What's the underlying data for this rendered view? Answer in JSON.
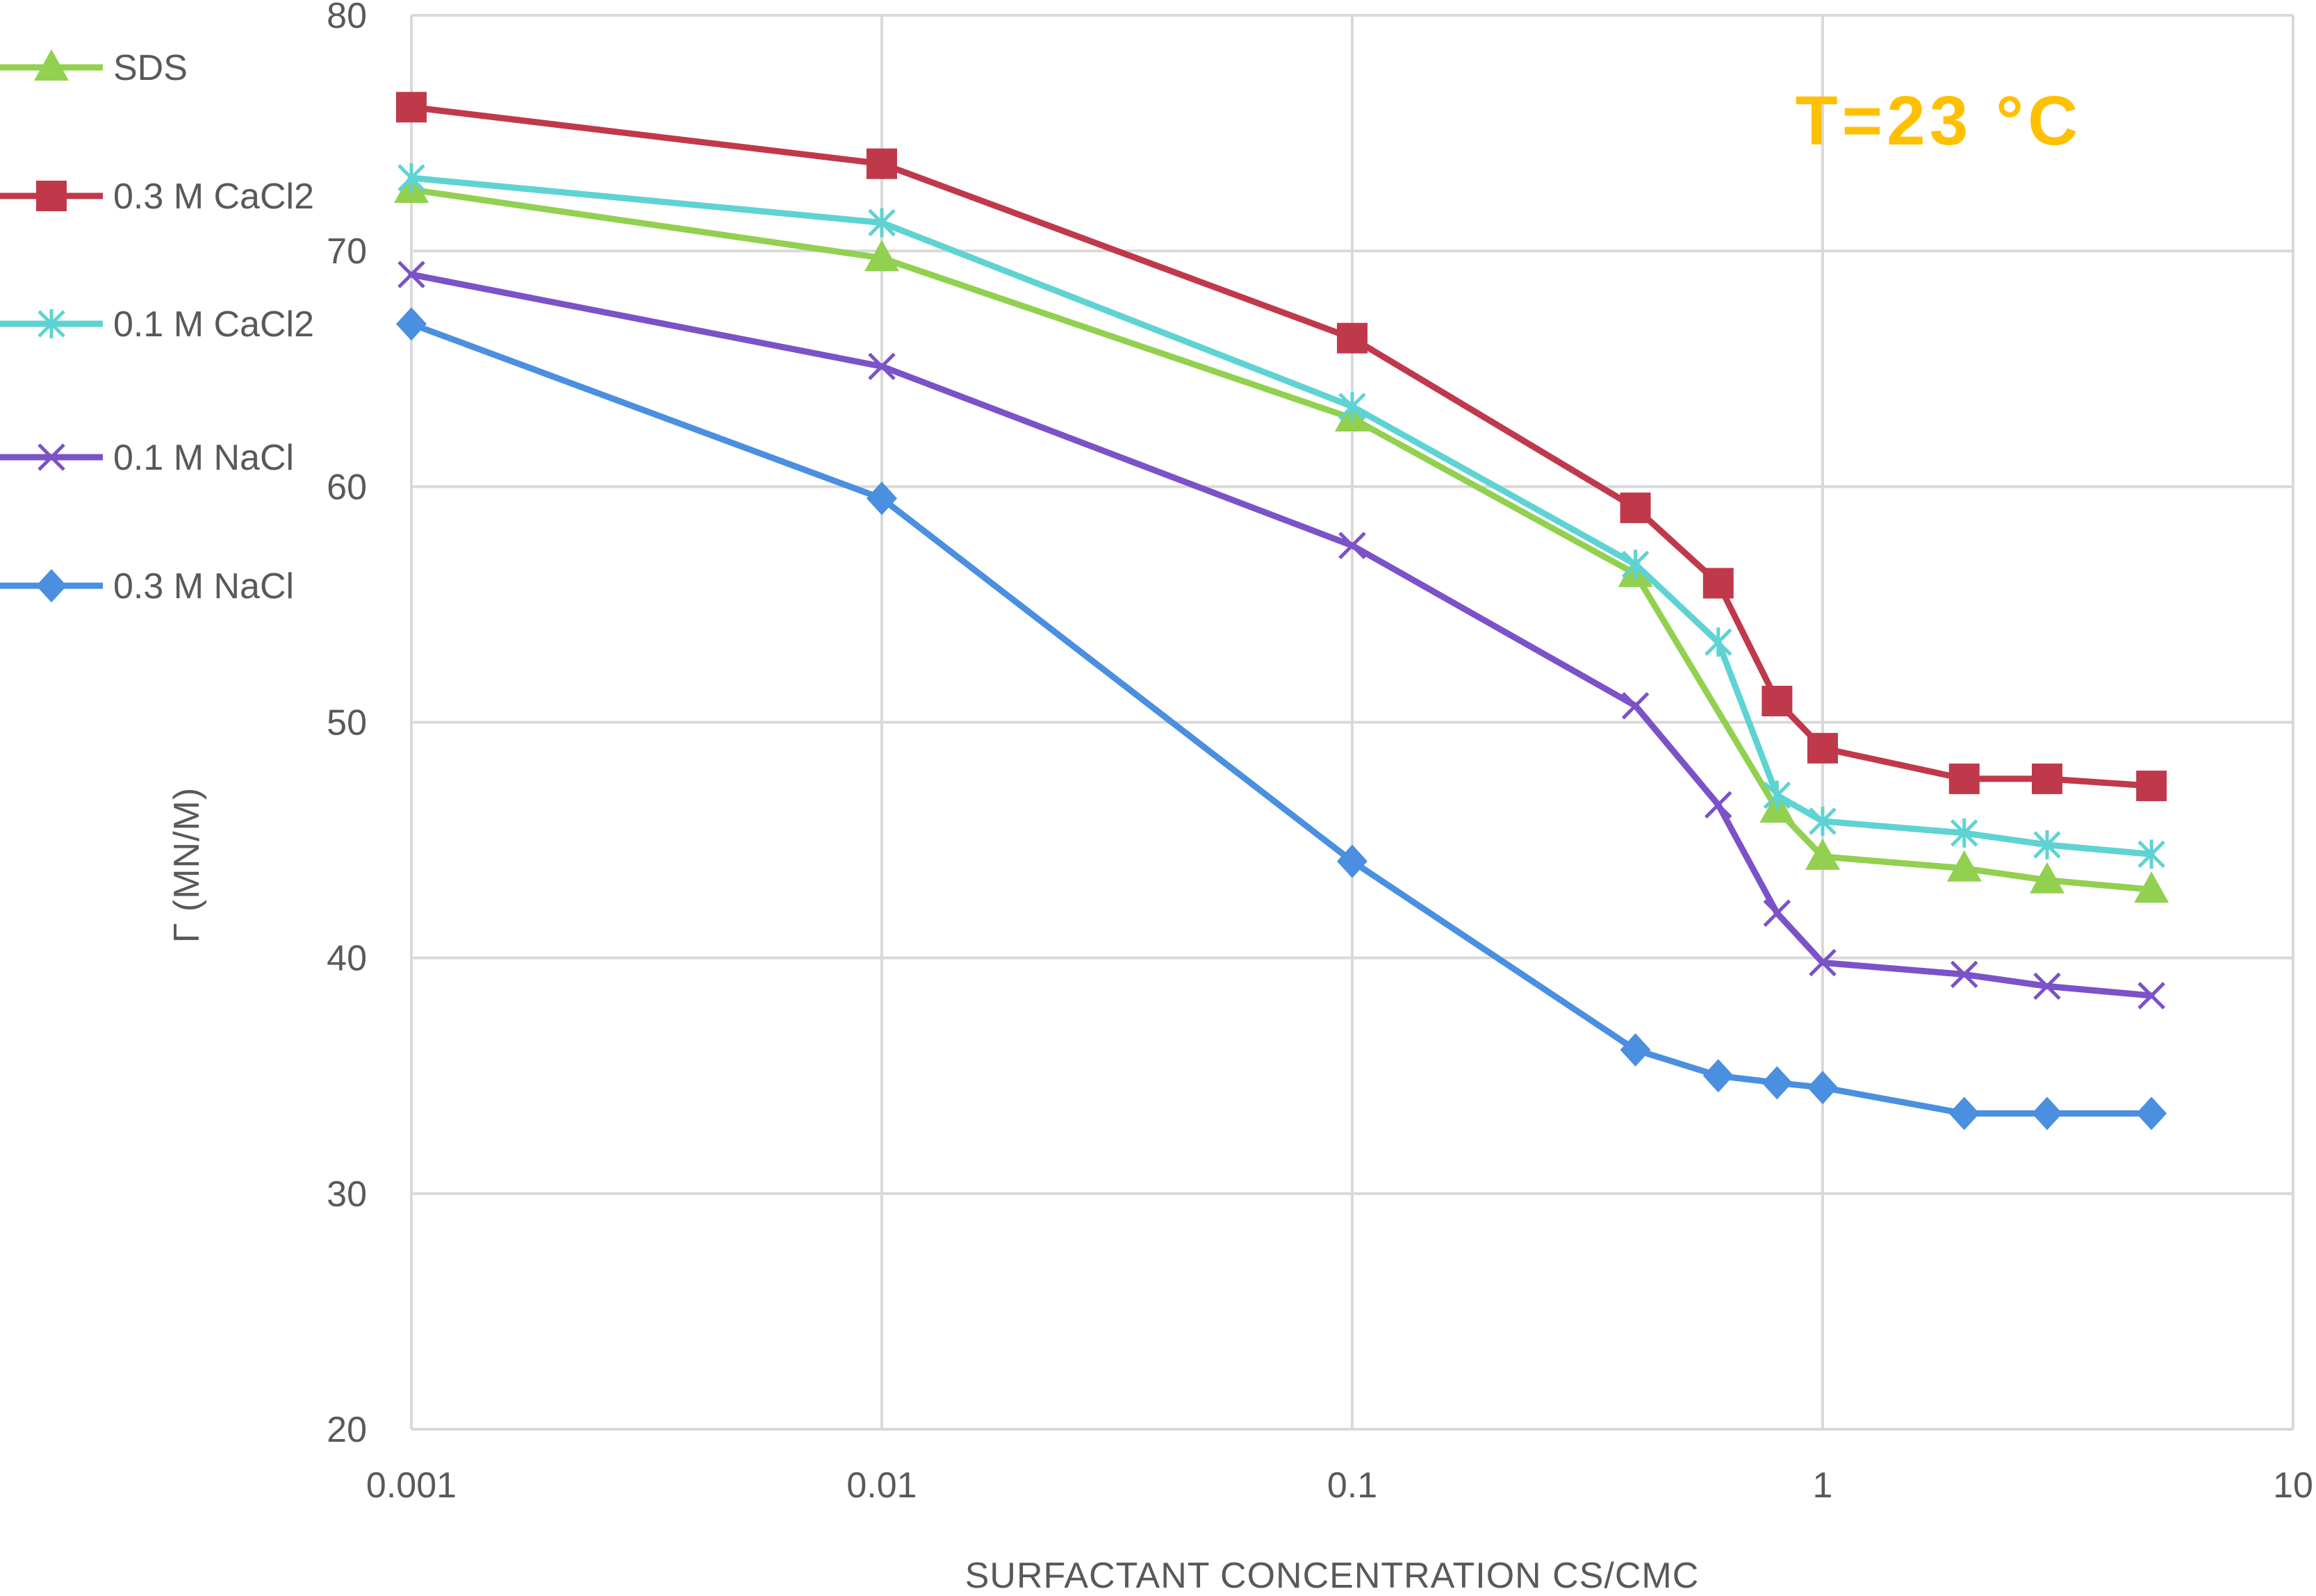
{
  "chart_data": {
    "type": "line",
    "xscale": "log",
    "xlabel": "SURFACTANT CONCENTRATION CS/CMC",
    "ylabel": "Γ (MN/M)",
    "annotation": "T=23 °C",
    "annotation_color": "#FFC000",
    "xlim": [
      0.001,
      10
    ],
    "ylim": [
      20,
      80
    ],
    "xticks": [
      0.001,
      0.01,
      0.1,
      1,
      10
    ],
    "xtick_labels": [
      "0.001",
      "0.01",
      "0.1",
      "1",
      "10"
    ],
    "yticks": [
      20,
      30,
      40,
      50,
      60,
      70,
      80
    ],
    "ytick_labels": [
      "20",
      "30",
      "40",
      "50",
      "60",
      "70",
      "80"
    ],
    "grid": true,
    "legend_position": "top-left",
    "x": [
      0.001,
      0.01,
      0.1,
      0.4,
      0.6,
      0.8,
      1,
      2,
      3,
      5
    ],
    "series": [
      {
        "name": "SDS",
        "color": "#92D050",
        "marker": "triangle",
        "values": [
          72.6,
          69.7,
          62.9,
          56.3,
          null,
          46.3,
          44.3,
          43.8,
          43.3,
          42.9
        ]
      },
      {
        "name": "0.3 M CaCl2",
        "color": "#C0394B",
        "marker": "square",
        "values": [
          76.1,
          73.7,
          66.3,
          59.1,
          55.9,
          50.9,
          48.9,
          47.6,
          47.6,
          47.3
        ]
      },
      {
        "name": "0.1 M CaCl2",
        "color": "#5FD3D3",
        "marker": "asterisk",
        "values": [
          73.1,
          71.2,
          63.4,
          56.7,
          53.4,
          46.9,
          45.8,
          45.3,
          44.8,
          44.4
        ]
      },
      {
        "name": "0.1 M NaCl",
        "color": "#7B52C8",
        "marker": "cross",
        "values": [
          69.0,
          65.1,
          57.5,
          50.7,
          46.5,
          41.9,
          39.8,
          39.3,
          38.8,
          38.4
        ]
      },
      {
        "name": "0.3 M NaCl",
        "color": "#4A8FE0",
        "marker": "diamond",
        "values": [
          66.9,
          59.5,
          44.1,
          36.1,
          35.0,
          34.7,
          34.5,
          33.4,
          33.4,
          33.4
        ]
      }
    ]
  }
}
